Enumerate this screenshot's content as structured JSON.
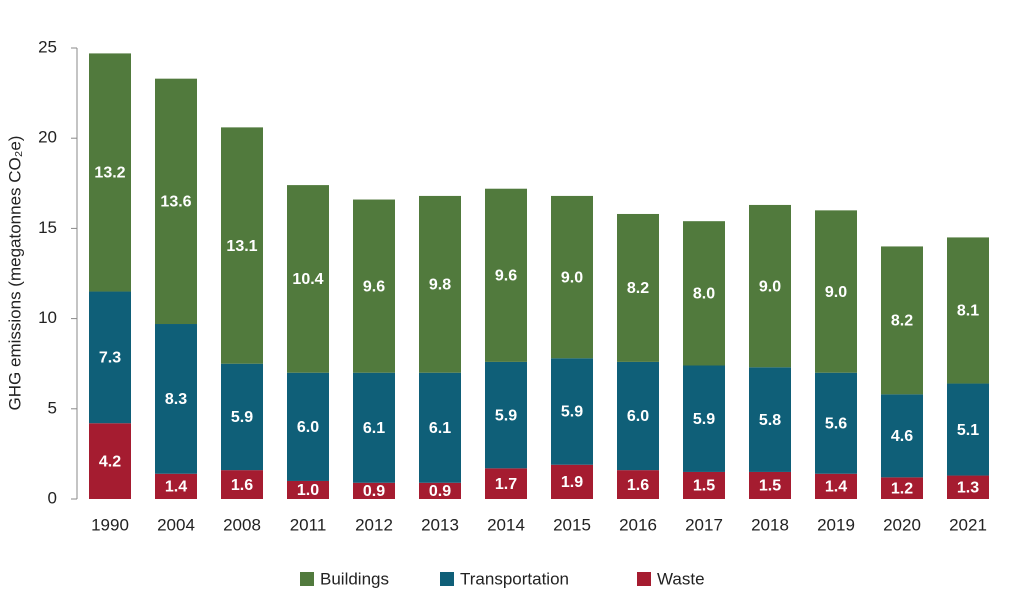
{
  "chart_data": {
    "type": "stacked-bar",
    "y_label": "GHG emissions (megatonnes CO₂e)",
    "categories": [
      "1990",
      "2004",
      "2008",
      "2011",
      "2012",
      "2013",
      "2014",
      "2015",
      "2016",
      "2017",
      "2018",
      "2019",
      "2020",
      "2021"
    ],
    "series": [
      {
        "name": "Waste",
        "color": "#a51c30",
        "values": [
          4.2,
          1.4,
          1.6,
          1.0,
          0.9,
          0.9,
          1.7,
          1.9,
          1.6,
          1.5,
          1.5,
          1.4,
          1.2,
          1.3
        ],
        "value_labels": [
          "4.2",
          "1.4",
          "1.6",
          "1.0",
          "0.9",
          "0.9",
          "1.7",
          "1.9",
          "1.6",
          "1.5",
          "1.5",
          "1.4",
          "1.2",
          "1.3"
        ]
      },
      {
        "name": "Transportation",
        "color": "#0f5f78",
        "values": [
          7.3,
          8.3,
          5.9,
          6.0,
          6.1,
          6.1,
          5.9,
          5.9,
          6.0,
          5.9,
          5.8,
          5.6,
          4.6,
          5.1
        ],
        "value_labels": [
          "7.3",
          "8.3",
          "5.9",
          "6.0",
          "6.1",
          "6.1",
          "5.9",
          "5.9",
          "6.0",
          "5.9",
          "5.8",
          "5.6",
          "4.6",
          "5.1"
        ]
      },
      {
        "name": "Buildings",
        "color": "#517a3d",
        "values": [
          13.2,
          13.6,
          13.1,
          10.4,
          9.6,
          9.8,
          9.6,
          9.0,
          8.2,
          8.0,
          9.0,
          9.0,
          8.2,
          8.1
        ],
        "value_labels": [
          "13.2",
          "13.6",
          "13.1",
          "10.4",
          "9.6",
          "9.8",
          "9.6",
          "9.0",
          "8.2",
          "8.0",
          "9.0",
          "9.0",
          "8.2",
          "8.1"
        ]
      }
    ],
    "legend_order": [
      "Buildings",
      "Transportation",
      "Waste"
    ],
    "ylim": [
      0,
      25
    ],
    "yticks": [
      0,
      5,
      10,
      15,
      20,
      25
    ],
    "grid": false
  }
}
